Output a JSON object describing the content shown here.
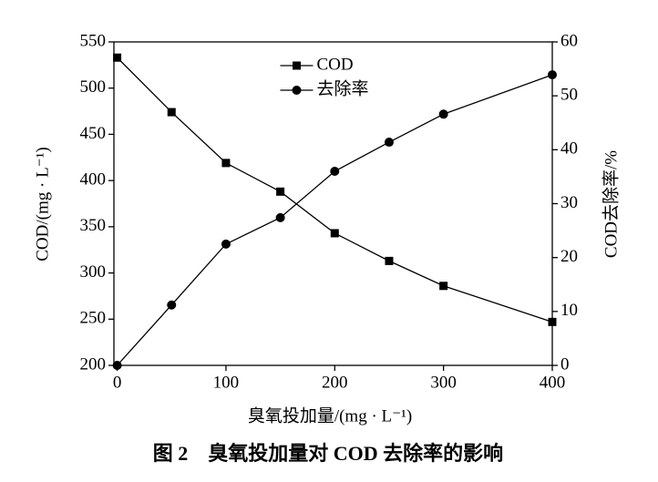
{
  "chart_data": {
    "type": "line",
    "title": "图 2　臭氧投加量对 COD 去除率的影响",
    "x_label": "臭氧投加量/(mg · L⁻¹)",
    "y_label": "COD/(mg · L⁻¹)",
    "y2_label": "COD去除率/%",
    "x": [
      0,
      50,
      100,
      150,
      200,
      250,
      300,
      400
    ],
    "xlim": [
      -3,
      400
    ],
    "xticks": [
      0,
      100,
      200,
      300,
      400
    ],
    "ylim": [
      200,
      550
    ],
    "yticks": [
      200,
      250,
      300,
      350,
      400,
      450,
      500,
      550
    ],
    "y2lim": [
      0,
      60
    ],
    "y2ticks": [
      0,
      10,
      20,
      30,
      40,
      50,
      60
    ],
    "legend": "upper center",
    "series": [
      {
        "name": "COD",
        "color": "#000000",
        "marker": "square",
        "values": [
          533,
          474,
          419,
          388,
          343,
          313,
          286,
          247
        ]
      },
      {
        "name": "去除率",
        "color": "#000000",
        "marker": "circle",
        "axis": "y2",
        "values": [
          0,
          11.2,
          22.5,
          27.4,
          36,
          41.4,
          46.6,
          53.9
        ]
      }
    ]
  }
}
